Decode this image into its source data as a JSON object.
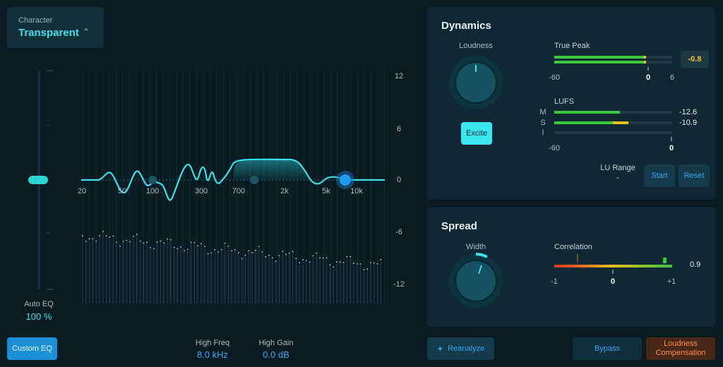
{
  "character": {
    "label": "Character",
    "value": "Transparent"
  },
  "eq": {
    "freq_labels": [
      "20",
      "50",
      "100",
      "300",
      "700",
      "2k",
      "5k",
      "10k"
    ],
    "db_labels": [
      "12",
      "6",
      "0",
      "-6",
      "-12"
    ],
    "auto_eq": {
      "label": "Auto EQ",
      "value": "100 %"
    },
    "high_freq": {
      "label": "High Freq",
      "value": "8.0 kHz"
    },
    "high_gain": {
      "label": "High Gain",
      "value": "0.0 dB"
    },
    "custom_eq": "Custom EQ"
  },
  "dynamics": {
    "title": "Dynamics",
    "loudness_label": "Loudness",
    "excite": "Excite",
    "true_peak": {
      "label": "True Peak",
      "scale": [
        "-60",
        "0",
        "6"
      ],
      "value": "-0.8"
    },
    "lufs": {
      "label": "LUFS",
      "channels": [
        "M",
        "S",
        "I"
      ],
      "values": [
        "-12.6",
        "-10.9"
      ],
      "scale": [
        "-60",
        "0"
      ]
    },
    "lu_range": {
      "label": "LU Range",
      "value": "-"
    },
    "start": "Start",
    "reset": "Reset"
  },
  "spread": {
    "title": "Spread",
    "width_label": "Width",
    "correlation": {
      "label": "Correlation",
      "scale": [
        "-1",
        "0",
        "+1"
      ],
      "value": "0.9"
    }
  },
  "footer": {
    "reanalyze": "Reanalyze",
    "bypass": "Bypass",
    "loudness_compensation": "Loudness Compensation"
  }
}
